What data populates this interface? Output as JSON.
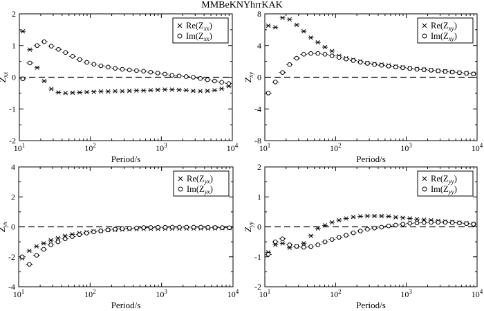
{
  "figure_title": "MMBeKNYhrrKAK",
  "chart_data": [
    {
      "type": "scatter",
      "panel": "top-left",
      "title": "",
      "xlabel": "Period/s",
      "ylabel": "Z_xx",
      "ylabel_main": "Z",
      "ylabel_sub": "xx",
      "xscale": "log",
      "xlim": [
        10,
        10000
      ],
      "ylim": [
        -2,
        2
      ],
      "xticks": [
        10,
        100,
        1000,
        10000
      ],
      "xtick_labels": [
        {
          "base": "10",
          "exp": "1"
        },
        {
          "base": "10",
          "exp": "2"
        },
        {
          "base": "10",
          "exp": "3"
        },
        {
          "base": "10",
          "exp": "4"
        }
      ],
      "yticks": [
        -2,
        -1,
        0,
        1,
        2
      ],
      "ytick_labels": [
        "-2",
        "-1",
        "0",
        "1",
        "2"
      ],
      "grid": false,
      "reference_line": 0,
      "legend_position": "top-right",
      "series": [
        {
          "name": "Re(Z_xx)",
          "legend_main": "Re(Z",
          "legend_sub": "xx",
          "legend_close": ")",
          "marker": "x",
          "x": [
            11.2,
            14.1,
            17.8,
            22.4,
            28.2,
            35.5,
            44.7,
            56.2,
            70.8,
            89.1,
            112,
            141,
            178,
            224,
            282,
            355,
            447,
            562,
            708,
            891,
            1122,
            1413,
            1778,
            2239,
            2818,
            3548,
            4467,
            5623,
            7079,
            8913
          ],
          "y": [
            1.45,
            0.87,
            0.3,
            -0.12,
            -0.37,
            -0.48,
            -0.5,
            -0.49,
            -0.48,
            -0.47,
            -0.46,
            -0.45,
            -0.45,
            -0.44,
            -0.44,
            -0.43,
            -0.42,
            -0.42,
            -0.41,
            -0.4,
            -0.39,
            -0.39,
            -0.4,
            -0.41,
            -0.43,
            -0.44,
            -0.43,
            -0.41,
            -0.36,
            -0.28
          ]
        },
        {
          "name": "Im(Z_xx)",
          "legend_main": "Im(Z",
          "legend_sub": "xx",
          "legend_close": ")",
          "marker": "o",
          "x": [
            11.2,
            14.1,
            17.8,
            22.4,
            28.2,
            35.5,
            44.7,
            56.2,
            70.8,
            89.1,
            112,
            141,
            178,
            224,
            282,
            355,
            447,
            562,
            708,
            891,
            1122,
            1413,
            1778,
            2239,
            2818,
            3548,
            4467,
            5623,
            7079,
            8913
          ],
          "y": [
            -0.05,
            0.45,
            1.0,
            1.12,
            0.98,
            0.88,
            0.78,
            0.66,
            0.56,
            0.47,
            0.41,
            0.36,
            0.32,
            0.28,
            0.25,
            0.23,
            0.21,
            0.19,
            0.16,
            0.13,
            0.1,
            0.06,
            0.04,
            0.02,
            0.0,
            -0.04,
            -0.08,
            -0.12,
            -0.16,
            -0.2
          ]
        }
      ]
    },
    {
      "type": "scatter",
      "panel": "top-right",
      "title": "",
      "xlabel": "Period/s",
      "ylabel": "Z_xy",
      "ylabel_main": "Z",
      "ylabel_sub": "xy",
      "xscale": "log",
      "xlim": [
        10,
        10000
      ],
      "ylim": [
        -8,
        8
      ],
      "xticks": [
        10,
        100,
        1000,
        10000
      ],
      "xtick_labels": [
        {
          "base": "10",
          "exp": "1"
        },
        {
          "base": "10",
          "exp": "2"
        },
        {
          "base": "10",
          "exp": "3"
        },
        {
          "base": "10",
          "exp": "4"
        }
      ],
      "yticks": [
        -8,
        -4,
        0,
        4,
        8
      ],
      "ytick_labels": [
        "-8",
        "-4",
        "0",
        "4",
        "8"
      ],
      "grid": false,
      "reference_line": 0,
      "legend_position": "top-right",
      "series": [
        {
          "name": "Re(Z_xy)",
          "legend_main": "Re(Z",
          "legend_sub": "xy",
          "legend_close": ")",
          "marker": "x",
          "x": [
            11.2,
            14.1,
            17.8,
            22.4,
            28.2,
            35.5,
            44.7,
            56.2,
            70.8,
            89.1,
            112,
            141,
            178,
            224,
            282,
            355,
            447,
            562,
            708,
            891,
            1122,
            1413,
            1778,
            2239,
            2818,
            3548,
            4467,
            5623,
            7079,
            8913
          ],
          "y": [
            6.5,
            6.3,
            7.5,
            7.3,
            6.6,
            5.8,
            5.0,
            4.4,
            3.8,
            3.3,
            2.7,
            2.4,
            2.2,
            2.0,
            1.8,
            1.7,
            1.6,
            1.5,
            1.35,
            1.25,
            1.15,
            1.05,
            0.98,
            0.9,
            0.82,
            0.75,
            0.67,
            0.6,
            0.52,
            0.42
          ]
        },
        {
          "name": "Im(Z_xy)",
          "legend_main": "Im(Z",
          "legend_sub": "xy",
          "legend_close": ")",
          "marker": "o",
          "x": [
            11.2,
            14.1,
            17.8,
            22.4,
            28.2,
            35.5,
            44.7,
            56.2,
            70.8,
            89.1,
            112,
            141,
            178,
            224,
            282,
            355,
            447,
            562,
            708,
            891,
            1122,
            1413,
            1778,
            2239,
            2818,
            3548,
            4467,
            5623,
            7079,
            8913
          ],
          "y": [
            -2.0,
            -0.6,
            0.6,
            1.6,
            2.4,
            2.9,
            3.0,
            3.0,
            2.9,
            2.7,
            2.5,
            2.3,
            2.1,
            1.9,
            1.75,
            1.6,
            1.5,
            1.4,
            1.3,
            1.2,
            1.1,
            1.0,
            0.95,
            0.88,
            0.8,
            0.72,
            0.65,
            0.58,
            0.5,
            0.42
          ]
        }
      ]
    },
    {
      "type": "scatter",
      "panel": "bottom-left",
      "title": "",
      "xlabel": "Period/s",
      "ylabel": "Z_yx",
      "ylabel_main": "Z",
      "ylabel_sub": "yx",
      "xscale": "log",
      "xlim": [
        10,
        10000
      ],
      "ylim": [
        -4,
        4
      ],
      "xticks": [
        10,
        100,
        1000,
        10000
      ],
      "xtick_labels": [
        {
          "base": "10",
          "exp": "1"
        },
        {
          "base": "10",
          "exp": "2"
        },
        {
          "base": "10",
          "exp": "3"
        },
        {
          "base": "10",
          "exp": "4"
        }
      ],
      "yticks": [
        -4,
        -2,
        0,
        2,
        4
      ],
      "ytick_labels": [
        "-4",
        "-2",
        "0",
        "2",
        "4"
      ],
      "grid": false,
      "reference_line": 0,
      "legend_position": "top-right",
      "series": [
        {
          "name": "Re(Z_yx)",
          "legend_main": "Re(Z",
          "legend_sub": "yx",
          "legend_close": ")",
          "marker": "x",
          "x": [
            11.2,
            14.1,
            17.8,
            22.4,
            28.2,
            35.5,
            44.7,
            56.2,
            70.8,
            89.1,
            112,
            141,
            178,
            224,
            282,
            355,
            447,
            562,
            708,
            891,
            1122,
            1413,
            1778,
            2239,
            2818,
            3548,
            4467,
            5623,
            7079,
            8913
          ],
          "y": [
            -2.1,
            -1.6,
            -1.3,
            -1.1,
            -0.9,
            -0.75,
            -0.6,
            -0.5,
            -0.42,
            -0.36,
            -0.3,
            -0.26,
            -0.22,
            -0.2,
            -0.18,
            -0.16,
            -0.15,
            -0.14,
            -0.13,
            -0.13,
            -0.12,
            -0.12,
            -0.12,
            -0.11,
            -0.11,
            -0.1,
            -0.1,
            -0.1,
            -0.09,
            -0.08
          ]
        },
        {
          "name": "Im(Z_yx)",
          "legend_main": "Im(Z",
          "legend_sub": "yx",
          "legend_close": ")",
          "marker": "o",
          "x": [
            11.2,
            14.1,
            17.8,
            22.4,
            28.2,
            35.5,
            44.7,
            56.2,
            70.8,
            89.1,
            112,
            141,
            178,
            224,
            282,
            355,
            447,
            562,
            708,
            891,
            1122,
            1413,
            1778,
            2239,
            2818,
            3548,
            4467,
            5623,
            7079,
            8913
          ],
          "y": [
            -2.0,
            -2.5,
            -1.9,
            -1.5,
            -1.2,
            -1.0,
            -0.8,
            -0.65,
            -0.52,
            -0.42,
            -0.34,
            -0.27,
            -0.2,
            -0.15,
            -0.12,
            -0.09,
            -0.07,
            -0.05,
            -0.04,
            -0.03,
            -0.03,
            -0.02,
            -0.02,
            -0.02,
            -0.02,
            -0.02,
            -0.03,
            -0.04,
            -0.05,
            -0.06
          ]
        }
      ]
    },
    {
      "type": "scatter",
      "panel": "bottom-right",
      "title": "",
      "xlabel": "Period/s",
      "ylabel": "Z_yy",
      "ylabel_main": "Z",
      "ylabel_sub": "yy",
      "xscale": "log",
      "xlim": [
        10,
        10000
      ],
      "ylim": [
        -2,
        2
      ],
      "xticks": [
        10,
        100,
        1000,
        10000
      ],
      "xtick_labels": [
        {
          "base": "10",
          "exp": "1"
        },
        {
          "base": "10",
          "exp": "2"
        },
        {
          "base": "10",
          "exp": "3"
        },
        {
          "base": "10",
          "exp": "4"
        }
      ],
      "yticks": [
        -2,
        -1,
        0,
        1,
        2
      ],
      "ytick_labels": [
        "-2",
        "-1",
        "0",
        "1",
        "2"
      ],
      "grid": false,
      "reference_line": 0,
      "legend_position": "top-right",
      "series": [
        {
          "name": "Re(Z_yy)",
          "legend_main": "Re(Z",
          "legend_sub": "yy",
          "legend_close": ")",
          "marker": "x",
          "x": [
            11.2,
            14.1,
            17.8,
            22.4,
            28.2,
            35.5,
            44.7,
            56.2,
            70.8,
            89.1,
            112,
            141,
            178,
            224,
            282,
            355,
            447,
            562,
            708,
            891,
            1122,
            1413,
            1778,
            2239,
            2818,
            3548,
            4467,
            5623,
            7079,
            8913
          ],
          "y": [
            -0.85,
            -0.6,
            -0.55,
            -0.7,
            -0.65,
            -0.55,
            -0.3,
            -0.05,
            0.05,
            0.15,
            0.22,
            0.28,
            0.33,
            0.35,
            0.36,
            0.36,
            0.36,
            0.35,
            0.32,
            0.3,
            0.28,
            0.26,
            0.24,
            0.22,
            0.2,
            0.18,
            0.16,
            0.14,
            0.12,
            0.1
          ]
        },
        {
          "name": "Im(Z_yy)",
          "legend_main": "Im(Z",
          "legend_sub": "yy",
          "legend_close": ")",
          "marker": "o",
          "x": [
            11.2,
            14.1,
            17.8,
            22.4,
            28.2,
            35.5,
            44.7,
            56.2,
            70.8,
            89.1,
            112,
            141,
            178,
            224,
            282,
            355,
            447,
            562,
            708,
            891,
            1122,
            1413,
            1778,
            2239,
            2818,
            3548,
            4467,
            5623,
            7079,
            8913
          ],
          "y": [
            -0.92,
            -0.5,
            -0.4,
            -0.6,
            -0.65,
            -0.68,
            -0.66,
            -0.6,
            -0.5,
            -0.42,
            -0.35,
            -0.28,
            -0.2,
            -0.14,
            -0.08,
            -0.04,
            -0.01,
            0.03,
            0.06,
            0.09,
            0.12,
            0.13,
            0.14,
            0.15,
            0.15,
            0.15,
            0.14,
            0.13,
            0.11,
            0.09
          ]
        }
      ]
    }
  ]
}
